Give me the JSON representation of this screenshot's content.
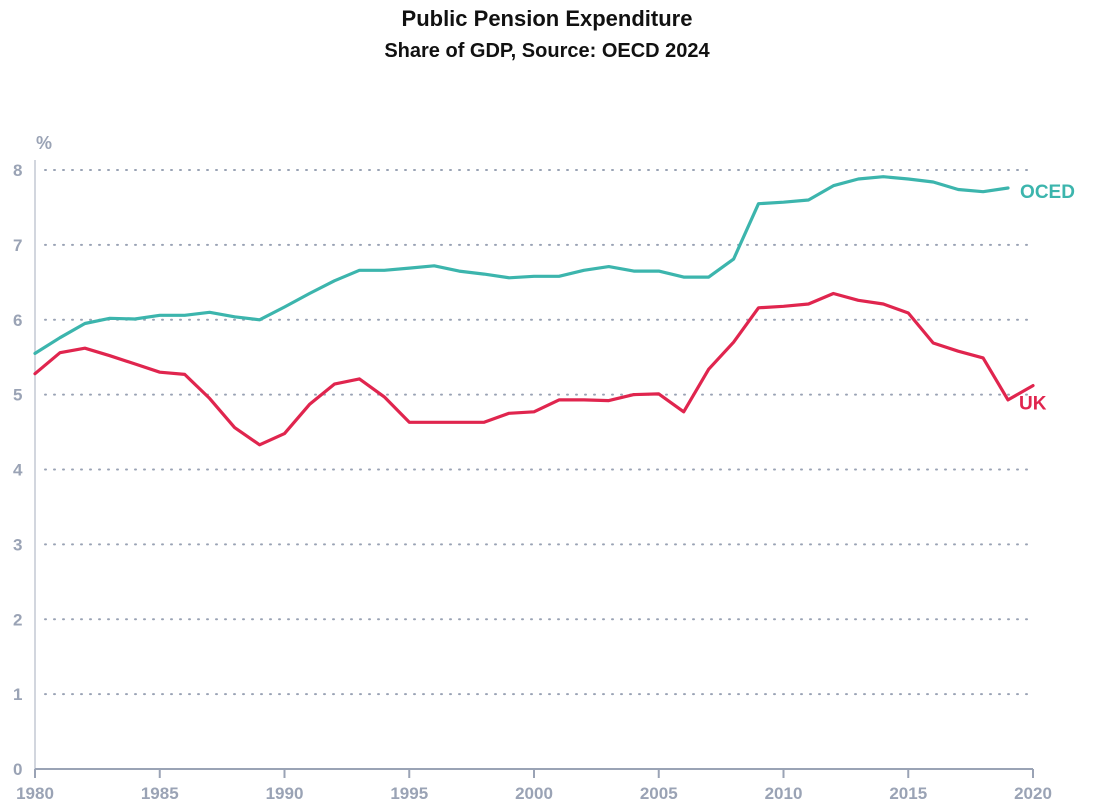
{
  "chart_data": {
    "type": "line",
    "title": "Public Pension Expenditure",
    "subtitle": "Share of GDP, Source: OECD 2024",
    "ylabel": "%",
    "xlim": [
      1980,
      2020
    ],
    "ylim": [
      0,
      8
    ],
    "yticks": [
      "0",
      "1",
      "2",
      "3",
      "4",
      "5",
      "6",
      "7",
      "8"
    ],
    "xticks": [
      "1980",
      "1985",
      "1990",
      "1995",
      "2000",
      "2005",
      "2010",
      "2015",
      "2020"
    ],
    "grid": true,
    "colors": {
      "OCED": "#3cb5ad",
      "UK": "#e0254e",
      "axis": "#9aa3b5"
    },
    "series": [
      {
        "name": "OCED",
        "x": [
          1980,
          1981,
          1982,
          1983,
          1984,
          1985,
          1986,
          1987,
          1988,
          1989,
          1990,
          1991,
          1992,
          1993,
          1994,
          1995,
          1996,
          1997,
          1998,
          1999,
          2000,
          2001,
          2002,
          2003,
          2004,
          2005,
          2006,
          2007,
          2008,
          2009,
          2010,
          2011,
          2012,
          2013,
          2014,
          2015,
          2016,
          2017,
          2018,
          2019
        ],
        "values": [
          5.55,
          5.76,
          5.95,
          6.02,
          6.01,
          6.06,
          6.06,
          6.1,
          6.04,
          6.0,
          6.17,
          6.35,
          6.52,
          6.66,
          6.66,
          6.69,
          6.72,
          6.65,
          6.61,
          6.56,
          6.58,
          6.58,
          6.66,
          6.71,
          6.65,
          6.65,
          6.57,
          6.57,
          6.81,
          7.55,
          7.57,
          7.6,
          7.79,
          7.88,
          7.91,
          7.88,
          7.84,
          7.74,
          7.71,
          7.76
        ]
      },
      {
        "name": "UK",
        "x": [
          1980,
          1981,
          1982,
          1983,
          1984,
          1985,
          1986,
          1987,
          1988,
          1989,
          1990,
          1991,
          1992,
          1993,
          1994,
          1995,
          1996,
          1997,
          1998,
          1999,
          2000,
          2001,
          2002,
          2003,
          2004,
          2005,
          2006,
          2007,
          2008,
          2009,
          2010,
          2011,
          2012,
          2013,
          2014,
          2015,
          2016,
          2017,
          2018,
          2019,
          2020
        ],
        "values": [
          5.28,
          5.56,
          5.62,
          5.52,
          5.41,
          5.3,
          5.27,
          4.95,
          4.56,
          4.33,
          4.48,
          4.87,
          5.14,
          5.21,
          4.97,
          4.63,
          4.63,
          4.63,
          4.63,
          4.75,
          4.77,
          4.93,
          4.93,
          4.92,
          5.0,
          5.01,
          4.77,
          5.34,
          5.7,
          6.16,
          6.18,
          6.21,
          6.35,
          6.26,
          6.21,
          6.09,
          5.69,
          5.58,
          5.49,
          4.93,
          5.12
        ]
      }
    ]
  }
}
